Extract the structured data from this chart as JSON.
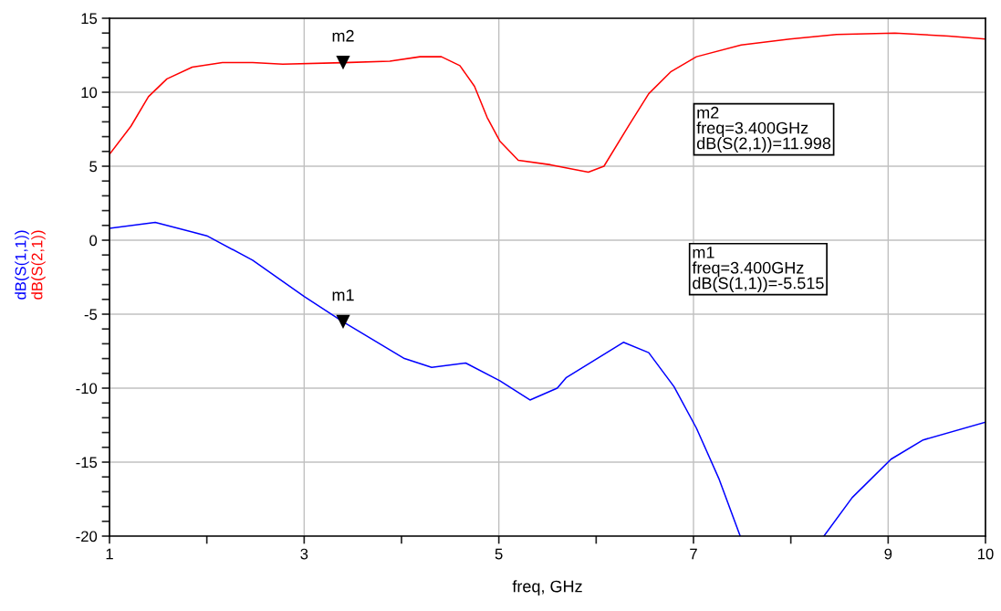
{
  "chart_data": {
    "type": "line",
    "xlabel": "freq, GHz",
    "xlim": [
      1,
      10
    ],
    "ylim": [
      -20,
      15
    ],
    "xticks": [
      1,
      {
        "value": 2,
        "label": null
      },
      3,
      {
        "value": 4,
        "label": null
      },
      5,
      {
        "value": 6,
        "label": null
      },
      7,
      {
        "value": 8,
        "label": null
      },
      9,
      10
    ],
    "yticks": [
      -20,
      {
        "value": -19,
        "label": null
      },
      {
        "value": -18,
        "label": null
      },
      {
        "value": -17,
        "label": null
      },
      {
        "value": -16,
        "label": null
      },
      -15,
      {
        "value": -14,
        "label": null
      },
      {
        "value": -13,
        "label": null
      },
      {
        "value": -12,
        "label": null
      },
      {
        "value": -11,
        "label": null
      },
      -10,
      {
        "value": -9,
        "label": null
      },
      {
        "value": -8,
        "label": null
      },
      {
        "value": -7,
        "label": null
      },
      {
        "value": -6,
        "label": null
      },
      -5,
      {
        "value": -4,
        "label": null
      },
      {
        "value": -3,
        "label": null
      },
      {
        "value": -2,
        "label": null
      },
      {
        "value": -1,
        "label": null
      },
      0,
      {
        "value": 1,
        "label": null
      },
      {
        "value": 2,
        "label": null
      },
      {
        "value": 3,
        "label": null
      },
      {
        "value": 4,
        "label": null
      },
      5,
      {
        "value": 6,
        "label": null
      },
      {
        "value": 7,
        "label": null
      },
      {
        "value": 8,
        "label": null
      },
      {
        "value": 9,
        "label": null
      },
      10,
      {
        "value": 11,
        "label": null
      },
      {
        "value": 12,
        "label": null
      },
      {
        "value": 13,
        "label": null
      },
      {
        "value": 14,
        "label": null
      },
      15
    ],
    "grid": true,
    "legend": false,
    "marker": "none",
    "line_style": "solid",
    "series": [
      {
        "name": "dB(S(1,1))",
        "color": "#0000ff",
        "x": [
          1,
          1.47,
          2.0,
          2.47,
          3.0,
          3.4,
          4.03,
          4.31,
          4.66,
          5.01,
          5.32,
          5.6,
          5.69,
          6.28,
          6.54,
          6.8,
          7.03,
          7.26,
          7.48,
          7.9,
          8.34,
          8.63,
          9.03,
          9.36,
          10
        ],
        "values": [
          0.8,
          1.2,
          0.3,
          -1.35,
          -3.8,
          -5.515,
          -8.0,
          -8.6,
          -8.3,
          -9.5,
          -10.8,
          -10.0,
          -9.3,
          -6.9,
          -7.6,
          -9.9,
          -12.7,
          -16.1,
          -20,
          null,
          -20,
          -17.4,
          -14.8,
          -13.5,
          -12.3
        ]
      },
      {
        "name": "dB(S(2,1))",
        "color": "#ff0000",
        "x": [
          1,
          1.22,
          1.4,
          1.59,
          1.85,
          2.16,
          2.47,
          2.78,
          3.4,
          3.88,
          4.19,
          4.41,
          4.6,
          4.75,
          4.88,
          5.01,
          5.2,
          5.53,
          5.92,
          6.08,
          6.34,
          6.54,
          6.77,
          7.03,
          7.49,
          7.99,
          8.47,
          9.07,
          9.62,
          10
        ],
        "values": [
          5.8,
          7.7,
          9.7,
          10.9,
          11.7,
          12.0,
          12.0,
          11.9,
          11.998,
          12.1,
          12.4,
          12.4,
          11.8,
          10.4,
          8.3,
          6.7,
          5.4,
          5.1,
          4.6,
          5.0,
          7.8,
          9.9,
          11.4,
          12.4,
          13.2,
          13.6,
          13.9,
          14.0,
          13.8,
          13.6
        ]
      }
    ],
    "annotations": [
      {
        "text": "m2",
        "x": 3.4,
        "y": 11.998
      },
      {
        "text": "m1",
        "x": 3.4,
        "y": -5.515
      },
      "m2\nfreq=3.400GHz\ndB(S(2,1))=11.998",
      "m1\nfreq=3.400GHz\ndB(S(1,1))=-5.515"
    ]
  }
}
